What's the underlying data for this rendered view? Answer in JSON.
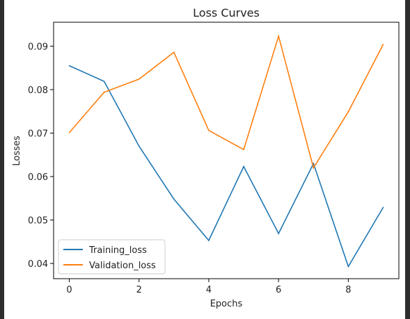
{
  "chart_data": {
    "type": "line",
    "title": "Loss Curves",
    "xlabel": "Epochs",
    "ylabel": "Losses",
    "x": [
      0,
      1,
      2,
      3,
      4,
      5,
      6,
      7,
      8,
      9
    ],
    "xlim": [
      -0.45,
      9.45
    ],
    "ylim": [
      0.0365,
      0.0955
    ],
    "xticks": [
      0,
      2,
      4,
      6,
      8
    ],
    "yticks": [
      0.04,
      0.05,
      0.06,
      0.07,
      0.08,
      0.09
    ],
    "xtick_labels": [
      "0",
      "2",
      "4",
      "6",
      "8"
    ],
    "ytick_labels": [
      "0.04",
      "0.05",
      "0.06",
      "0.07",
      "0.08",
      "0.09"
    ],
    "grid": false,
    "legend_position": "lower-left",
    "series": [
      {
        "name": "Training_loss",
        "color": "#1f77b4",
        "values": [
          0.0855,
          0.0819,
          0.067,
          0.0548,
          0.0453,
          0.0623,
          0.0469,
          0.063,
          0.0393,
          0.0529
        ]
      },
      {
        "name": "Validation_loss",
        "color": "#ff7f0e",
        "values": [
          0.0701,
          0.0794,
          0.0824,
          0.0886,
          0.0706,
          0.0662,
          0.0923,
          0.062,
          0.0749,
          0.0904
        ]
      }
    ]
  },
  "colors": {
    "background": "#ffffff",
    "left_border": "#2d2d2d",
    "right_border": "#2d2d2d"
  }
}
